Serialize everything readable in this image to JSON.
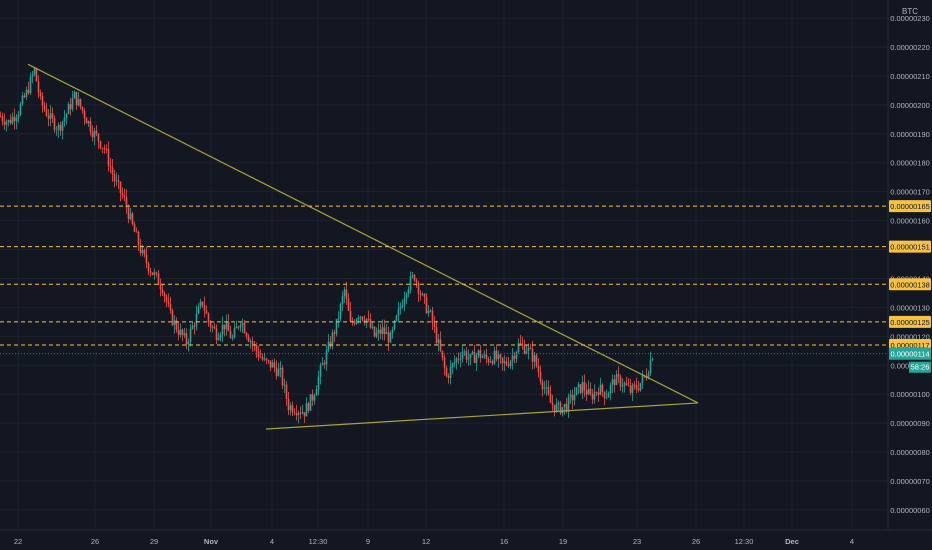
{
  "colors": {
    "background": "#131722",
    "grid": "#1e222d",
    "axis_text": "#b2b5be",
    "up": "#26a69a",
    "down": "#ef5350",
    "trendline": "#a7a23a",
    "level_line": "#f5c242",
    "level_badge_bg": "#f5c242",
    "level_badge_text": "#131722",
    "last_price_bg": "#26a69a",
    "last_price_text": "#ffffff"
  },
  "axis": {
    "currency": "BTC",
    "y_ticks": [
      "0.00000230",
      "0.00000220",
      "0.00000210",
      "0.00000200",
      "0.00000190",
      "0.00000180",
      "0.00000170",
      "0.00000160",
      "0.00000150",
      "0.00000140",
      "0.00000130",
      "0.00000120",
      "0.00000110",
      "0.00000100",
      "0.00000090",
      "0.00000080",
      "0.00000070",
      "0.00000060"
    ],
    "x_ticks": [
      "22",
      "26",
      "29",
      "Nov",
      "4",
      "12:30",
      "9",
      "12",
      "16",
      "19",
      "23",
      "26",
      "12:30",
      "Dec",
      "4"
    ]
  },
  "levels": [
    {
      "label": "0.00000165",
      "value": 1.65
    },
    {
      "label": "0.00000151",
      "value": 1.51
    },
    {
      "label": "0.00000138",
      "value": 1.38
    },
    {
      "label": "0.00000125",
      "value": 1.25
    },
    {
      "label": "0.00000117",
      "value": 1.17
    }
  ],
  "last_price": {
    "label": "0.00000114",
    "countdown": "58:26",
    "value": 1.14
  },
  "chart_data": {
    "type": "candlestick",
    "unit": "BTC (x 1e-6)",
    "x_range": [
      "22",
      "Dec 4"
    ],
    "ylim": [
      0.58,
      2.32
    ],
    "grid": true,
    "path_points": [
      {
        "x": 0,
        "y": 1.96
      },
      {
        "x": 8,
        "y": 1.94
      },
      {
        "x": 18,
        "y": 1.98
      },
      {
        "x": 26,
        "y": 2.04
      },
      {
        "x": 34,
        "y": 2.12
      },
      {
        "x": 40,
        "y": 2.01
      },
      {
        "x": 50,
        "y": 1.95
      },
      {
        "x": 58,
        "y": 1.92
      },
      {
        "x": 66,
        "y": 1.97
      },
      {
        "x": 74,
        "y": 2.03
      },
      {
        "x": 82,
        "y": 1.98
      },
      {
        "x": 92,
        "y": 1.91
      },
      {
        "x": 104,
        "y": 1.85
      },
      {
        "x": 114,
        "y": 1.74
      },
      {
        "x": 124,
        "y": 1.67
      },
      {
        "x": 132,
        "y": 1.58
      },
      {
        "x": 142,
        "y": 1.48
      },
      {
        "x": 152,
        "y": 1.42
      },
      {
        "x": 162,
        "y": 1.37
      },
      {
        "x": 170,
        "y": 1.27
      },
      {
        "x": 178,
        "y": 1.22
      },
      {
        "x": 186,
        "y": 1.18
      },
      {
        "x": 194,
        "y": 1.25
      },
      {
        "x": 202,
        "y": 1.32
      },
      {
        "x": 208,
        "y": 1.25
      },
      {
        "x": 216,
        "y": 1.21
      },
      {
        "x": 224,
        "y": 1.24
      },
      {
        "x": 232,
        "y": 1.19
      },
      {
        "x": 240,
        "y": 1.26
      },
      {
        "x": 248,
        "y": 1.2
      },
      {
        "x": 256,
        "y": 1.15
      },
      {
        "x": 264,
        "y": 1.11
      },
      {
        "x": 272,
        "y": 1.1
      },
      {
        "x": 280,
        "y": 1.07
      },
      {
        "x": 288,
        "y": 0.96
      },
      {
        "x": 296,
        "y": 0.95
      },
      {
        "x": 304,
        "y": 0.94
      },
      {
        "x": 312,
        "y": 0.99
      },
      {
        "x": 320,
        "y": 1.08
      },
      {
        "x": 328,
        "y": 1.16
      },
      {
        "x": 336,
        "y": 1.24
      },
      {
        "x": 344,
        "y": 1.36
      },
      {
        "x": 350,
        "y": 1.24
      },
      {
        "x": 358,
        "y": 1.28
      },
      {
        "x": 366,
        "y": 1.26
      },
      {
        "x": 374,
        "y": 1.2
      },
      {
        "x": 382,
        "y": 1.22
      },
      {
        "x": 390,
        "y": 1.19
      },
      {
        "x": 398,
        "y": 1.28
      },
      {
        "x": 406,
        "y": 1.37
      },
      {
        "x": 414,
        "y": 1.41
      },
      {
        "x": 422,
        "y": 1.33
      },
      {
        "x": 430,
        "y": 1.27
      },
      {
        "x": 438,
        "y": 1.17
      },
      {
        "x": 446,
        "y": 1.06
      },
      {
        "x": 454,
        "y": 1.11
      },
      {
        "x": 462,
        "y": 1.15
      },
      {
        "x": 470,
        "y": 1.12
      },
      {
        "x": 478,
        "y": 1.14
      },
      {
        "x": 486,
        "y": 1.12
      },
      {
        "x": 494,
        "y": 1.13
      },
      {
        "x": 502,
        "y": 1.1
      },
      {
        "x": 510,
        "y": 1.12
      },
      {
        "x": 518,
        "y": 1.17
      },
      {
        "x": 526,
        "y": 1.16
      },
      {
        "x": 534,
        "y": 1.12
      },
      {
        "x": 542,
        "y": 1.04
      },
      {
        "x": 550,
        "y": 0.97
      },
      {
        "x": 558,
        "y": 0.95
      },
      {
        "x": 566,
        "y": 0.96
      },
      {
        "x": 574,
        "y": 1.0
      },
      {
        "x": 582,
        "y": 1.03
      },
      {
        "x": 590,
        "y": 0.99
      },
      {
        "x": 598,
        "y": 1.02
      },
      {
        "x": 606,
        "y": 1.0
      },
      {
        "x": 614,
        "y": 1.05
      },
      {
        "x": 622,
        "y": 1.04
      },
      {
        "x": 630,
        "y": 1.01
      },
      {
        "x": 638,
        "y": 1.03
      },
      {
        "x": 646,
        "y": 1.07
      },
      {
        "x": 652,
        "y": 1.14
      }
    ],
    "trendlines": [
      {
        "name": "upper",
        "from": {
          "x": 28,
          "y": 2.14
        },
        "to": {
          "x": 698,
          "y": 0.97
        }
      },
      {
        "name": "lower",
        "from": {
          "x": 266,
          "y": 0.88
        },
        "to": {
          "x": 698,
          "y": 0.97
        }
      }
    ]
  }
}
